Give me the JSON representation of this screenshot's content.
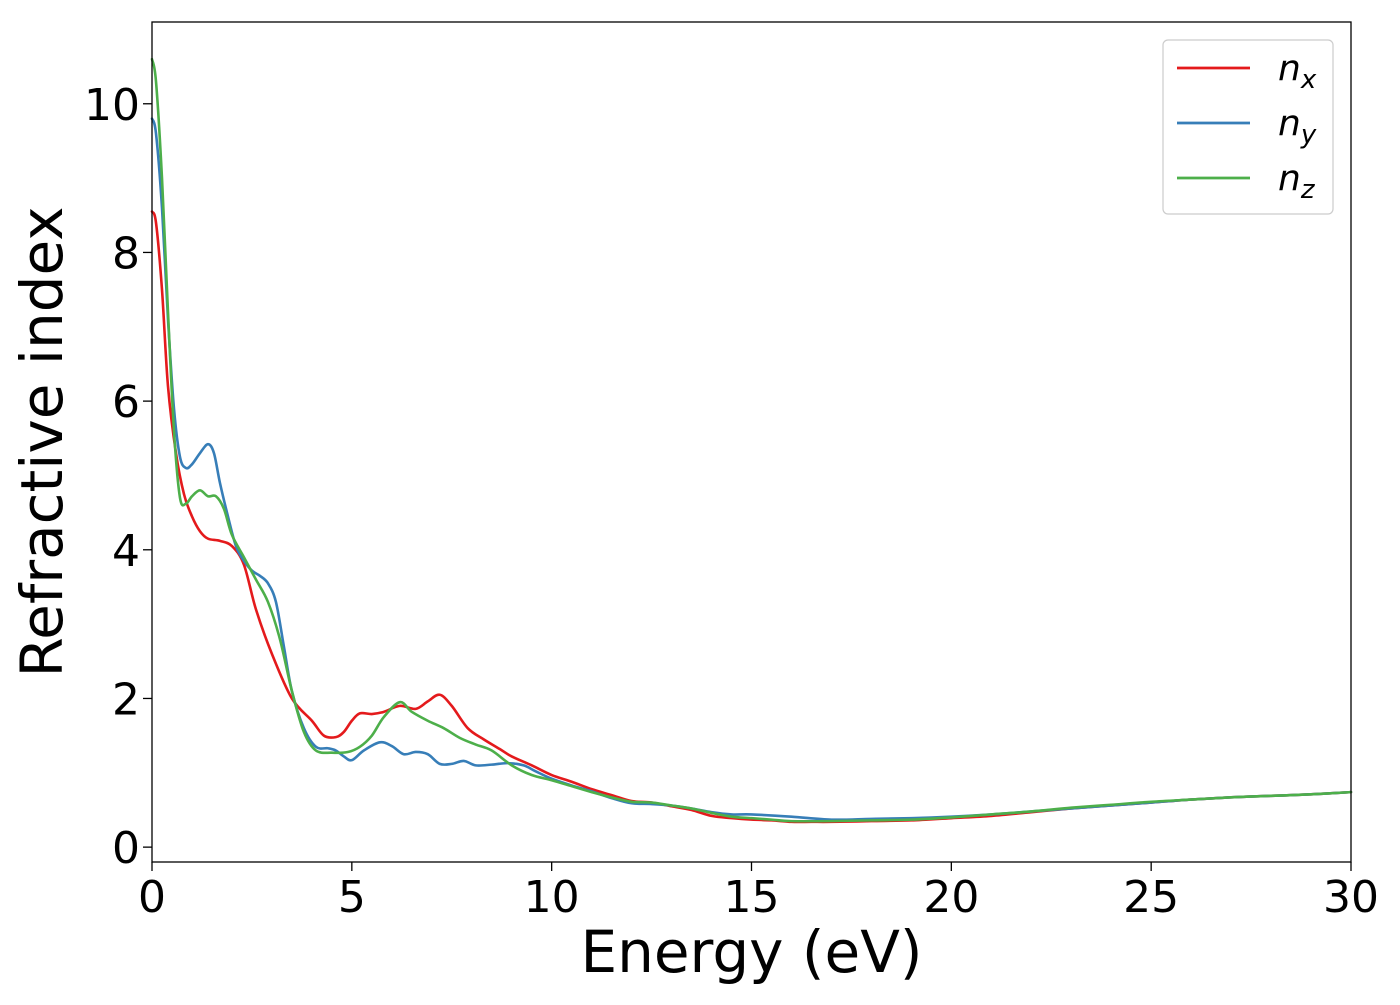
{
  "chart_data": {
    "type": "line",
    "title": "",
    "xlabel": "Energy (eV)",
    "ylabel": "Refractive index",
    "xlim": [
      0,
      30
    ],
    "ylim": [
      -0.2,
      11.1
    ],
    "xticks": [
      0,
      5,
      10,
      15,
      20,
      25,
      30
    ],
    "yticks": [
      0,
      2,
      4,
      6,
      8,
      10
    ],
    "grid": false,
    "legend_position": "top-right",
    "series": [
      {
        "name": "n_x",
        "label_main": "n",
        "label_sub": "x",
        "color": "#e41a1c",
        "points": [
          [
            0,
            8.55
          ],
          [
            0.1,
            8.4
          ],
          [
            0.25,
            7.5
          ],
          [
            0.4,
            6.2
          ],
          [
            0.6,
            5.3
          ],
          [
            0.8,
            4.75
          ],
          [
            1.0,
            4.45
          ],
          [
            1.2,
            4.25
          ],
          [
            1.4,
            4.15
          ],
          [
            1.7,
            4.12
          ],
          [
            2.0,
            4.05
          ],
          [
            2.3,
            3.8
          ],
          [
            2.6,
            3.2
          ],
          [
            3.0,
            2.6
          ],
          [
            3.5,
            2.0
          ],
          [
            4.0,
            1.7
          ],
          [
            4.3,
            1.5
          ],
          [
            4.6,
            1.48
          ],
          [
            4.8,
            1.55
          ],
          [
            5.0,
            1.7
          ],
          [
            5.2,
            1.8
          ],
          [
            5.5,
            1.79
          ],
          [
            5.8,
            1.82
          ],
          [
            6.2,
            1.9
          ],
          [
            6.6,
            1.86
          ],
          [
            6.9,
            1.96
          ],
          [
            7.2,
            2.05
          ],
          [
            7.5,
            1.9
          ],
          [
            7.9,
            1.6
          ],
          [
            8.3,
            1.45
          ],
          [
            8.7,
            1.32
          ],
          [
            9.0,
            1.22
          ],
          [
            9.5,
            1.1
          ],
          [
            10.0,
            0.97
          ],
          [
            10.5,
            0.88
          ],
          [
            11.0,
            0.78
          ],
          [
            11.5,
            0.7
          ],
          [
            12.0,
            0.62
          ],
          [
            12.5,
            0.6
          ],
          [
            13.0,
            0.55
          ],
          [
            13.5,
            0.5
          ],
          [
            14.0,
            0.42
          ],
          [
            14.5,
            0.39
          ],
          [
            15.0,
            0.37
          ],
          [
            15.5,
            0.36
          ],
          [
            16.0,
            0.34
          ],
          [
            16.5,
            0.34
          ],
          [
            17.0,
            0.34
          ],
          [
            18.0,
            0.35
          ],
          [
            19.0,
            0.36
          ],
          [
            20.0,
            0.39
          ],
          [
            21.0,
            0.42
          ],
          [
            22.0,
            0.47
          ],
          [
            23.0,
            0.52
          ],
          [
            24.0,
            0.56
          ],
          [
            25.0,
            0.6
          ],
          [
            26.0,
            0.64
          ],
          [
            27.0,
            0.67
          ],
          [
            28.0,
            0.69
          ],
          [
            29.0,
            0.71
          ],
          [
            30.0,
            0.74
          ]
        ]
      },
      {
        "name": "n_y",
        "label_main": "n",
        "label_sub": "y",
        "color": "#377eb8",
        "points": [
          [
            0,
            9.8
          ],
          [
            0.1,
            9.6
          ],
          [
            0.25,
            8.6
          ],
          [
            0.4,
            7.1
          ],
          [
            0.55,
            5.9
          ],
          [
            0.7,
            5.25
          ],
          [
            0.85,
            5.1
          ],
          [
            1.0,
            5.15
          ],
          [
            1.2,
            5.3
          ],
          [
            1.4,
            5.42
          ],
          [
            1.55,
            5.3
          ],
          [
            1.7,
            4.9
          ],
          [
            1.9,
            4.45
          ],
          [
            2.1,
            4.05
          ],
          [
            2.3,
            3.85
          ],
          [
            2.5,
            3.72
          ],
          [
            2.7,
            3.65
          ],
          [
            2.9,
            3.55
          ],
          [
            3.1,
            3.3
          ],
          [
            3.3,
            2.7
          ],
          [
            3.5,
            2.1
          ],
          [
            3.8,
            1.6
          ],
          [
            4.1,
            1.35
          ],
          [
            4.4,
            1.33
          ],
          [
            4.6,
            1.3
          ],
          [
            4.8,
            1.22
          ],
          [
            5.0,
            1.17
          ],
          [
            5.3,
            1.3
          ],
          [
            5.7,
            1.41
          ],
          [
            6.0,
            1.36
          ],
          [
            6.3,
            1.25
          ],
          [
            6.6,
            1.28
          ],
          [
            6.9,
            1.25
          ],
          [
            7.2,
            1.12
          ],
          [
            7.5,
            1.12
          ],
          [
            7.8,
            1.16
          ],
          [
            8.1,
            1.1
          ],
          [
            8.5,
            1.11
          ],
          [
            8.9,
            1.13
          ],
          [
            9.3,
            1.1
          ],
          [
            9.6,
            1.02
          ],
          [
            10.0,
            0.92
          ],
          [
            10.5,
            0.83
          ],
          [
            11.0,
            0.75
          ],
          [
            11.5,
            0.66
          ],
          [
            12.0,
            0.59
          ],
          [
            12.5,
            0.58
          ],
          [
            13.0,
            0.56
          ],
          [
            13.5,
            0.52
          ],
          [
            14.0,
            0.47
          ],
          [
            14.5,
            0.44
          ],
          [
            15.0,
            0.44
          ],
          [
            16.0,
            0.41
          ],
          [
            17.0,
            0.37
          ],
          [
            18.0,
            0.38
          ],
          [
            19.0,
            0.39
          ],
          [
            20.0,
            0.41
          ],
          [
            21.0,
            0.44
          ],
          [
            22.0,
            0.48
          ],
          [
            23.0,
            0.52
          ],
          [
            24.0,
            0.56
          ],
          [
            25.0,
            0.6
          ],
          [
            26.0,
            0.64
          ],
          [
            27.0,
            0.67
          ],
          [
            28.0,
            0.69
          ],
          [
            29.0,
            0.71
          ],
          [
            30.0,
            0.74
          ]
        ]
      },
      {
        "name": "n_z",
        "label_main": "n",
        "label_sub": "z",
        "color": "#4daf4a",
        "points": [
          [
            0,
            10.6
          ],
          [
            0.1,
            10.3
          ],
          [
            0.25,
            9.0
          ],
          [
            0.4,
            7.2
          ],
          [
            0.55,
            5.6
          ],
          [
            0.7,
            4.7
          ],
          [
            0.85,
            4.62
          ],
          [
            1.0,
            4.72
          ],
          [
            1.2,
            4.8
          ],
          [
            1.4,
            4.72
          ],
          [
            1.6,
            4.72
          ],
          [
            1.8,
            4.55
          ],
          [
            2.0,
            4.2
          ],
          [
            2.3,
            3.9
          ],
          [
            2.6,
            3.6
          ],
          [
            2.9,
            3.3
          ],
          [
            3.2,
            2.8
          ],
          [
            3.5,
            2.1
          ],
          [
            3.8,
            1.55
          ],
          [
            4.1,
            1.3
          ],
          [
            4.5,
            1.27
          ],
          [
            4.9,
            1.28
          ],
          [
            5.2,
            1.35
          ],
          [
            5.5,
            1.5
          ],
          [
            5.8,
            1.75
          ],
          [
            6.2,
            1.95
          ],
          [
            6.5,
            1.82
          ],
          [
            6.9,
            1.7
          ],
          [
            7.3,
            1.6
          ],
          [
            7.7,
            1.47
          ],
          [
            8.1,
            1.38
          ],
          [
            8.5,
            1.3
          ],
          [
            9.0,
            1.1
          ],
          [
            9.5,
            0.97
          ],
          [
            10.0,
            0.9
          ],
          [
            10.5,
            0.82
          ],
          [
            11.0,
            0.74
          ],
          [
            11.5,
            0.67
          ],
          [
            12.0,
            0.61
          ],
          [
            12.5,
            0.6
          ],
          [
            13.0,
            0.56
          ],
          [
            13.5,
            0.52
          ],
          [
            14.0,
            0.46
          ],
          [
            14.5,
            0.41
          ],
          [
            15.0,
            0.39
          ],
          [
            15.5,
            0.37
          ],
          [
            16.0,
            0.35
          ],
          [
            17.0,
            0.35
          ],
          [
            18.0,
            0.36
          ],
          [
            19.0,
            0.37
          ],
          [
            20.0,
            0.4
          ],
          [
            21.0,
            0.44
          ],
          [
            22.0,
            0.48
          ],
          [
            23.0,
            0.53
          ],
          [
            24.0,
            0.57
          ],
          [
            25.0,
            0.61
          ],
          [
            26.0,
            0.64
          ],
          [
            27.0,
            0.67
          ],
          [
            28.0,
            0.69
          ],
          [
            29.0,
            0.71
          ],
          [
            30.0,
            0.74
          ]
        ]
      }
    ]
  }
}
